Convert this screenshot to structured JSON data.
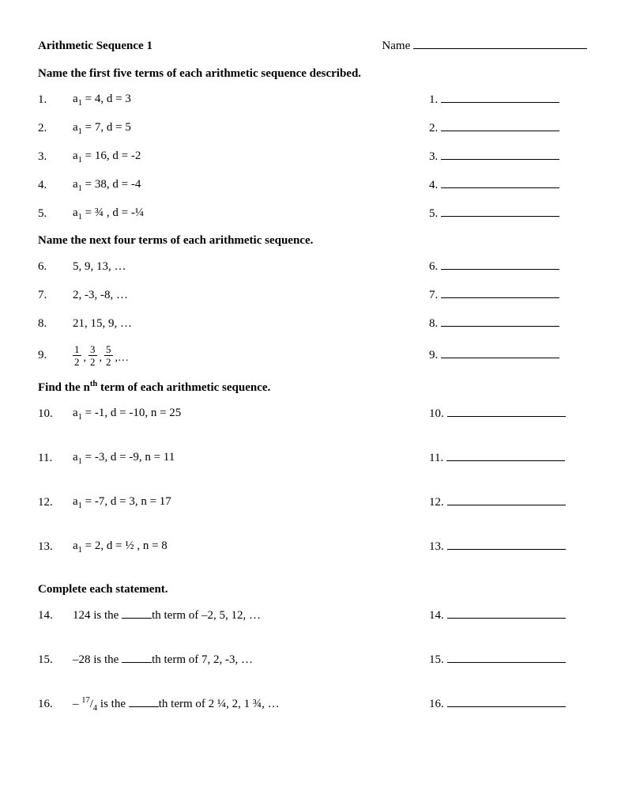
{
  "document": {
    "title": "Arithmetic Sequence 1",
    "name_label": "Name",
    "font_family": "Times New Roman",
    "text_color": "#000000",
    "background_color": "#ffffff"
  },
  "sections": [
    {
      "heading": "Name the first five terms of each arithmetic sequence described.",
      "heading_contains_sup": false,
      "items": [
        {
          "num": "1.",
          "content": "a<sub>1</sub> = 4,  d = 3",
          "ans_num": "1.",
          "spacing": "normal"
        },
        {
          "num": "2.",
          "content": "a<sub>1</sub> = 7,  d = 5",
          "ans_num": "2.",
          "spacing": "normal"
        },
        {
          "num": "3.",
          "content": "a<sub>1</sub> = 16,  d = -2",
          "ans_num": "3.",
          "spacing": "normal"
        },
        {
          "num": "4.",
          "content": "a<sub>1</sub> = 38,  d = -4",
          "ans_num": "4.",
          "spacing": "normal"
        },
        {
          "num": "5.",
          "content": "a<sub>1</sub> = ¾ ,  d = -¼",
          "ans_num": "5.",
          "spacing": "normal"
        }
      ]
    },
    {
      "heading": "Name the next four terms of each arithmetic sequence.",
      "heading_contains_sup": false,
      "items": [
        {
          "num": "6.",
          "content": "5, 9, 13, …",
          "ans_num": "6.",
          "spacing": "normal"
        },
        {
          "num": "7.",
          "content": "2, -3, -8, …",
          "ans_num": "7.",
          "spacing": "normal"
        },
        {
          "num": "8.",
          "content": "21, 15, 9, …",
          "ans_num": "8.",
          "spacing": "normal"
        },
        {
          "num": "9.",
          "content_type": "fracs",
          "fracs": [
            [
              "1",
              "2"
            ],
            [
              "3",
              "2"
            ],
            [
              "5",
              "2"
            ]
          ],
          "trailing": ",…",
          "ans_num": "9.",
          "spacing": "normal"
        }
      ]
    },
    {
      "heading": "Find the n<sup>th</sup> term of each arithmetic sequence.",
      "heading_contains_sup": true,
      "items": [
        {
          "num": "10.",
          "content": "a<sub>1</sub> = -1,  d = -10,   n = 25",
          "ans_num": "10.",
          "spacing": "tall"
        },
        {
          "num": "11.",
          "content": "a<sub>1</sub> = -3,  d = -9,  n = 11",
          "ans_num": "11.",
          "spacing": "tall"
        },
        {
          "num": "12.",
          "content": "a<sub>1</sub> = -7,  d = 3,  n = 17",
          "ans_num": "12.",
          "spacing": "tall"
        },
        {
          "num": "13.",
          "content": "a<sub>1</sub> = 2,  d = ½ ,  n = 8",
          "ans_num": "13.",
          "spacing": "tall"
        }
      ]
    },
    {
      "heading": "Complete each statement.",
      "heading_contains_sup": false,
      "items": [
        {
          "num": "14.",
          "content_type": "fill",
          "before": "124 is the ",
          "after": "th term of –2, 5, 12, …",
          "ans_num": "14.",
          "spacing": "tall"
        },
        {
          "num": "15.",
          "content_type": "fill",
          "before": "–28 is the ",
          "after": "th term of 7, 2, -3, …",
          "ans_num": "15.",
          "spacing": "tall"
        },
        {
          "num": "16.",
          "content_type": "fill",
          "before": "– <sup>17</sup>/<sub>4</sub> is the ",
          "after": "th term of 2 ¼, 2, 1 ¾, …",
          "ans_num": "16.",
          "spacing": "tall"
        }
      ]
    }
  ]
}
